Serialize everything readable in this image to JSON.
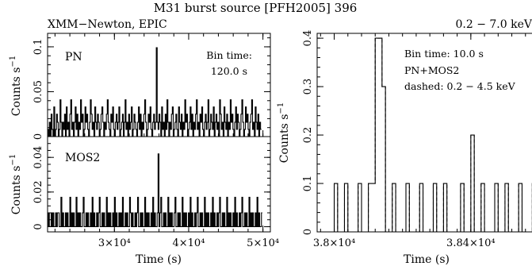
{
  "figure": {
    "title": "M31 burst source [PFH2005] 396",
    "left_header": "XMM−Newton, EPIC",
    "right_header": "0.2 − 7.0 keV"
  },
  "chart_data": [
    {
      "type": "line",
      "step": true,
      "panel": "PN",
      "label": "PN",
      "annotation": [
        "Bin time:",
        "120.0 s"
      ],
      "ylabel": "Counts s⁻¹",
      "ylim": [
        0,
        0.115
      ],
      "yticks": [
        0,
        0.05,
        0.1
      ],
      "yticklabels": [
        "0",
        "0.05",
        "0.1"
      ],
      "xlim": [
        21000,
        51000
      ],
      "xticks_visible": false,
      "binwidth": 120,
      "x_start": 21000,
      "values": [
        0.008,
        0.0,
        0.016,
        0.0,
        0.025,
        0.008,
        0.0,
        0.033,
        0.0,
        0.008,
        0.025,
        0.016,
        0.0,
        0.008,
        0.041,
        0.016,
        0.0,
        0.016,
        0.008,
        0.025,
        0.0,
        0.033,
        0.008,
        0.016,
        0.0,
        0.025,
        0.041,
        0.008,
        0.016,
        0.0,
        0.016,
        0.033,
        0.008,
        0.025,
        0.0,
        0.016,
        0.008,
        0.041,
        0.016,
        0.025,
        0.0,
        0.008,
        0.033,
        0.016,
        0.025,
        0.008,
        0.0,
        0.016,
        0.041,
        0.025,
        0.008,
        0.016,
        0.0,
        0.033,
        0.016,
        0.008,
        0.025,
        0.016,
        0.0,
        0.008,
        0.025,
        0.033,
        0.016,
        0.0,
        0.016,
        0.008,
        0.025,
        0.041,
        0.016,
        0.008,
        0.0,
        0.025,
        0.016,
        0.033,
        0.008,
        0.0,
        0.016,
        0.025,
        0.008,
        0.016,
        0.033,
        0.0,
        0.008,
        0.016,
        0.025,
        0.0,
        0.016,
        0.041,
        0.008,
        0.016,
        0.0,
        0.025,
        0.008,
        0.016,
        0.033,
        0.0,
        0.008,
        0.025,
        0.016,
        0.008,
        0.0,
        0.016,
        0.033,
        0.008,
        0.025,
        0.0,
        0.016,
        0.008,
        0.025,
        0.041,
        0.016,
        0.0,
        0.008,
        0.025,
        0.016,
        0.033,
        0.008,
        0.0,
        0.016,
        0.025,
        0.008,
        0.016,
        0.099,
        0.016,
        0.008,
        0.025,
        0.016,
        0.0,
        0.033,
        0.008,
        0.016,
        0.0,
        0.025,
        0.008,
        0.041,
        0.016,
        0.0,
        0.016,
        0.008,
        0.025,
        0.033,
        0.0,
        0.008,
        0.016,
        0.025,
        0.008,
        0.0,
        0.033,
        0.016,
        0.008,
        0.025,
        0.0,
        0.016,
        0.008,
        0.041,
        0.016,
        0.025,
        0.0,
        0.008,
        0.016,
        0.033,
        0.008,
        0.025,
        0.0,
        0.016,
        0.008,
        0.025,
        0.041,
        0.008,
        0.016,
        0.0,
        0.025,
        0.016,
        0.033,
        0.008,
        0.0,
        0.016,
        0.025,
        0.008,
        0.016,
        0.041,
        0.0,
        0.008,
        0.025,
        0.016,
        0.008,
        0.033,
        0.0,
        0.016,
        0.025,
        0.008,
        0.016,
        0.0,
        0.041,
        0.025,
        0.008,
        0.016,
        0.0,
        0.033,
        0.016,
        0.008,
        0.025,
        0.0,
        0.016,
        0.008,
        0.041,
        0.016,
        0.025,
        0.008,
        0.0,
        0.016,
        0.033,
        0.008,
        0.025,
        0.016,
        0.0,
        0.008,
        0.025,
        0.041,
        0.016,
        0.0,
        0.008,
        0.033,
        0.016,
        0.025,
        0.008,
        0.0,
        0.016,
        0.025,
        0.041,
        0.008,
        0.016,
        0.0,
        0.033,
        0.016,
        0.008,
        0.025,
        0.0,
        0.016,
        0.008
      ]
    },
    {
      "type": "line",
      "step": true,
      "panel": "MOS2",
      "label": "MOS2",
      "ylabel": "Counts s⁻¹",
      "ylim": [
        -0.003,
        0.052
      ],
      "yticks": [
        0,
        0.02,
        0.04
      ],
      "yticklabels": [
        "0",
        "0.02",
        "0.04"
      ],
      "xlabel": "Time (s)",
      "xlim": [
        21000,
        51000
      ],
      "xticks": [
        30000,
        40000,
        50000
      ],
      "xticklabels": [
        "3×10⁴",
        "4×10⁴",
        "5×10⁴"
      ],
      "binwidth": 120,
      "x_start": 21000,
      "values": [
        0.0,
        0.008,
        0.0,
        0.0,
        0.008,
        0.0,
        0.008,
        0.0,
        0.0,
        0.008,
        0.0,
        0.008,
        0.008,
        0.0,
        0.0,
        0.017,
        0.0,
        0.008,
        0.0,
        0.0,
        0.008,
        0.0,
        0.008,
        0.0,
        0.0,
        0.017,
        0.0,
        0.008,
        0.0,
        0.008,
        0.0,
        0.0,
        0.017,
        0.0,
        0.008,
        0.0,
        0.008,
        0.0,
        0.0,
        0.008,
        0.017,
        0.0,
        0.0,
        0.008,
        0.0,
        0.008,
        0.0,
        0.0,
        0.008,
        0.0,
        0.017,
        0.0,
        0.008,
        0.0,
        0.0,
        0.008,
        0.0,
        0.008,
        0.017,
        0.0,
        0.0,
        0.008,
        0.0,
        0.008,
        0.0,
        0.0,
        0.017,
        0.0,
        0.008,
        0.0,
        0.008,
        0.0,
        0.0,
        0.008,
        0.0,
        0.017,
        0.0,
        0.008,
        0.0,
        0.0,
        0.008,
        0.0,
        0.008,
        0.0,
        0.017,
        0.0,
        0.0,
        0.008,
        0.0,
        0.008,
        0.0,
        0.0,
        0.017,
        0.008,
        0.0,
        0.008,
        0.0,
        0.0,
        0.008,
        0.0,
        0.008,
        0.017,
        0.0,
        0.0,
        0.008,
        0.0,
        0.008,
        0.0,
        0.0,
        0.017,
        0.0,
        0.008,
        0.0,
        0.008,
        0.0,
        0.0,
        0.008,
        0.0,
        0.017,
        0.0,
        0.008,
        0.0,
        0.0,
        0.008,
        0.042,
        0.0,
        0.008,
        0.017,
        0.0,
        0.0,
        0.008,
        0.0,
        0.008,
        0.0,
        0.0,
        0.017,
        0.0,
        0.008,
        0.0,
        0.008,
        0.0,
        0.0,
        0.008,
        0.017,
        0.0,
        0.0,
        0.008,
        0.0,
        0.008,
        0.0,
        0.0,
        0.017,
        0.0,
        0.008,
        0.0,
        0.008,
        0.0,
        0.0,
        0.008,
        0.0,
        0.017,
        0.0,
        0.008,
        0.0,
        0.0,
        0.008,
        0.0,
        0.008,
        0.017,
        0.0,
        0.0,
        0.008,
        0.0,
        0.008,
        0.0,
        0.0,
        0.017,
        0.0,
        0.008,
        0.0,
        0.008,
        0.0,
        0.0,
        0.008,
        0.0,
        0.017,
        0.0,
        0.008,
        0.0,
        0.0,
        0.008,
        0.0,
        0.008,
        0.017,
        0.0,
        0.0,
        0.008,
        0.0,
        0.008,
        0.0,
        0.0,
        0.017,
        0.0,
        0.008,
        0.0,
        0.008,
        0.0,
        0.0,
        0.008,
        0.0,
        0.017,
        0.0,
        0.008,
        0.0,
        0.0,
        0.008,
        0.0,
        0.008,
        0.017,
        0.0,
        0.0,
        0.008,
        0.0,
        0.008,
        0.0,
        0.0,
        0.017,
        0.0,
        0.008,
        0.0,
        0.008,
        0.0,
        0.0,
        0.008,
        0.0,
        0.017,
        0.0,
        0.008,
        0.0,
        0.0,
        0.008
      ]
    },
    {
      "type": "line",
      "step": true,
      "panel": "zoom",
      "annotation": [
        "Bin time: 10.0 s",
        "PN+MOS2",
        "dashed: 0.2 − 4.5 keV"
      ],
      "ylabel": "Counts s⁻¹",
      "ylim": [
        0,
        0.41
      ],
      "yticks": [
        0,
        0.1,
        0.2,
        0.3,
        0.4
      ],
      "yticklabels": [
        "0",
        "0.1",
        "0.2",
        "0.3",
        "0.4"
      ],
      "xlabel": "Time (s)",
      "xlim": [
        37950,
        38600
      ],
      "xticks": [
        38000,
        38400
      ],
      "xticklabels": [
        "3.8×10⁴",
        "3.84×10⁴"
      ],
      "binwidth": 10,
      "series": [
        {
          "name": "0.2 − 7.0 keV",
          "style": "solid",
          "points": [
            [
              37950,
              0
            ],
            [
              38000,
              0.1
            ],
            [
              38010,
              0
            ],
            [
              38030,
              0.1
            ],
            [
              38040,
              0
            ],
            [
              38070,
              0.1
            ],
            [
              38080,
              0
            ],
            [
              38100,
              0.1
            ],
            [
              38120,
              0.4
            ],
            [
              38140,
              0.3
            ],
            [
              38150,
              0
            ],
            [
              38170,
              0.1
            ],
            [
              38180,
              0
            ],
            [
              38210,
              0.1
            ],
            [
              38220,
              0
            ],
            [
              38250,
              0.1
            ],
            [
              38260,
              0
            ],
            [
              38290,
              0.1
            ],
            [
              38300,
              0
            ],
            [
              38320,
              0.1
            ],
            [
              38330,
              0
            ],
            [
              38370,
              0.1
            ],
            [
              38380,
              0
            ],
            [
              38400,
              0.2
            ],
            [
              38410,
              0
            ],
            [
              38430,
              0.1
            ],
            [
              38440,
              0
            ],
            [
              38470,
              0.1
            ],
            [
              38480,
              0
            ],
            [
              38500,
              0.1
            ],
            [
              38510,
              0
            ],
            [
              38540,
              0.1
            ],
            [
              38550,
              0
            ],
            [
              38580,
              0.1
            ],
            [
              38590,
              0
            ],
            [
              38600,
              0
            ]
          ]
        },
        {
          "name": "0.2 − 4.5 keV",
          "style": "dashed",
          "points": [
            [
              37950,
              0
            ],
            [
              38000,
              0.1
            ],
            [
              38010,
              0
            ],
            [
              38030,
              0.1
            ],
            [
              38040,
              0
            ],
            [
              38070,
              0.1
            ],
            [
              38080,
              0
            ],
            [
              38100,
              0.1
            ],
            [
              38120,
              0.4
            ],
            [
              38140,
              0.3
            ],
            [
              38150,
              0
            ],
            [
              38170,
              0.1
            ],
            [
              38180,
              0
            ],
            [
              38210,
              0.1
            ],
            [
              38220,
              0
            ],
            [
              38250,
              0.1
            ],
            [
              38260,
              0
            ],
            [
              38290,
              0.1
            ],
            [
              38300,
              0
            ],
            [
              38320,
              0.1
            ],
            [
              38330,
              0
            ],
            [
              38370,
              0.1
            ],
            [
              38380,
              0
            ],
            [
              38400,
              0.2
            ],
            [
              38410,
              0
            ],
            [
              38430,
              0.1
            ],
            [
              38440,
              0
            ],
            [
              38470,
              0.1
            ],
            [
              38480,
              0
            ],
            [
              38500,
              0.1
            ],
            [
              38510,
              0
            ],
            [
              38540,
              0.1
            ],
            [
              38550,
              0
            ],
            [
              38580,
              0.1
            ],
            [
              38590,
              0
            ],
            [
              38600,
              0
            ]
          ]
        }
      ]
    }
  ]
}
